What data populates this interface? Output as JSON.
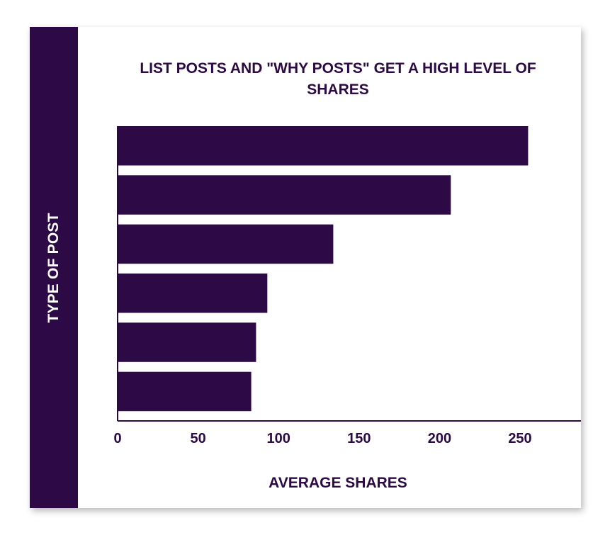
{
  "colors": {
    "bar": "#2d0a45",
    "strip": "#2d0a45",
    "text": "#2d0a45",
    "strip_text": "#ffffff"
  },
  "chart_data": {
    "type": "bar",
    "orientation": "horizontal",
    "title": "LIST POSTS AND \"WHY POSTS\" GET A HIGH LEVEL OF SHARES",
    "xlabel": "AVERAGE SHARES",
    "ylabel": "TYPE OF POST",
    "categories": [
      "",
      "",
      "",
      "",
      "",
      ""
    ],
    "values": [
      255,
      207,
      134,
      93,
      86,
      83
    ],
    "xlim": [
      0,
      285
    ],
    "xticks": [
      0,
      50,
      100,
      150,
      200,
      250
    ],
    "grid": false,
    "legend": "none"
  }
}
